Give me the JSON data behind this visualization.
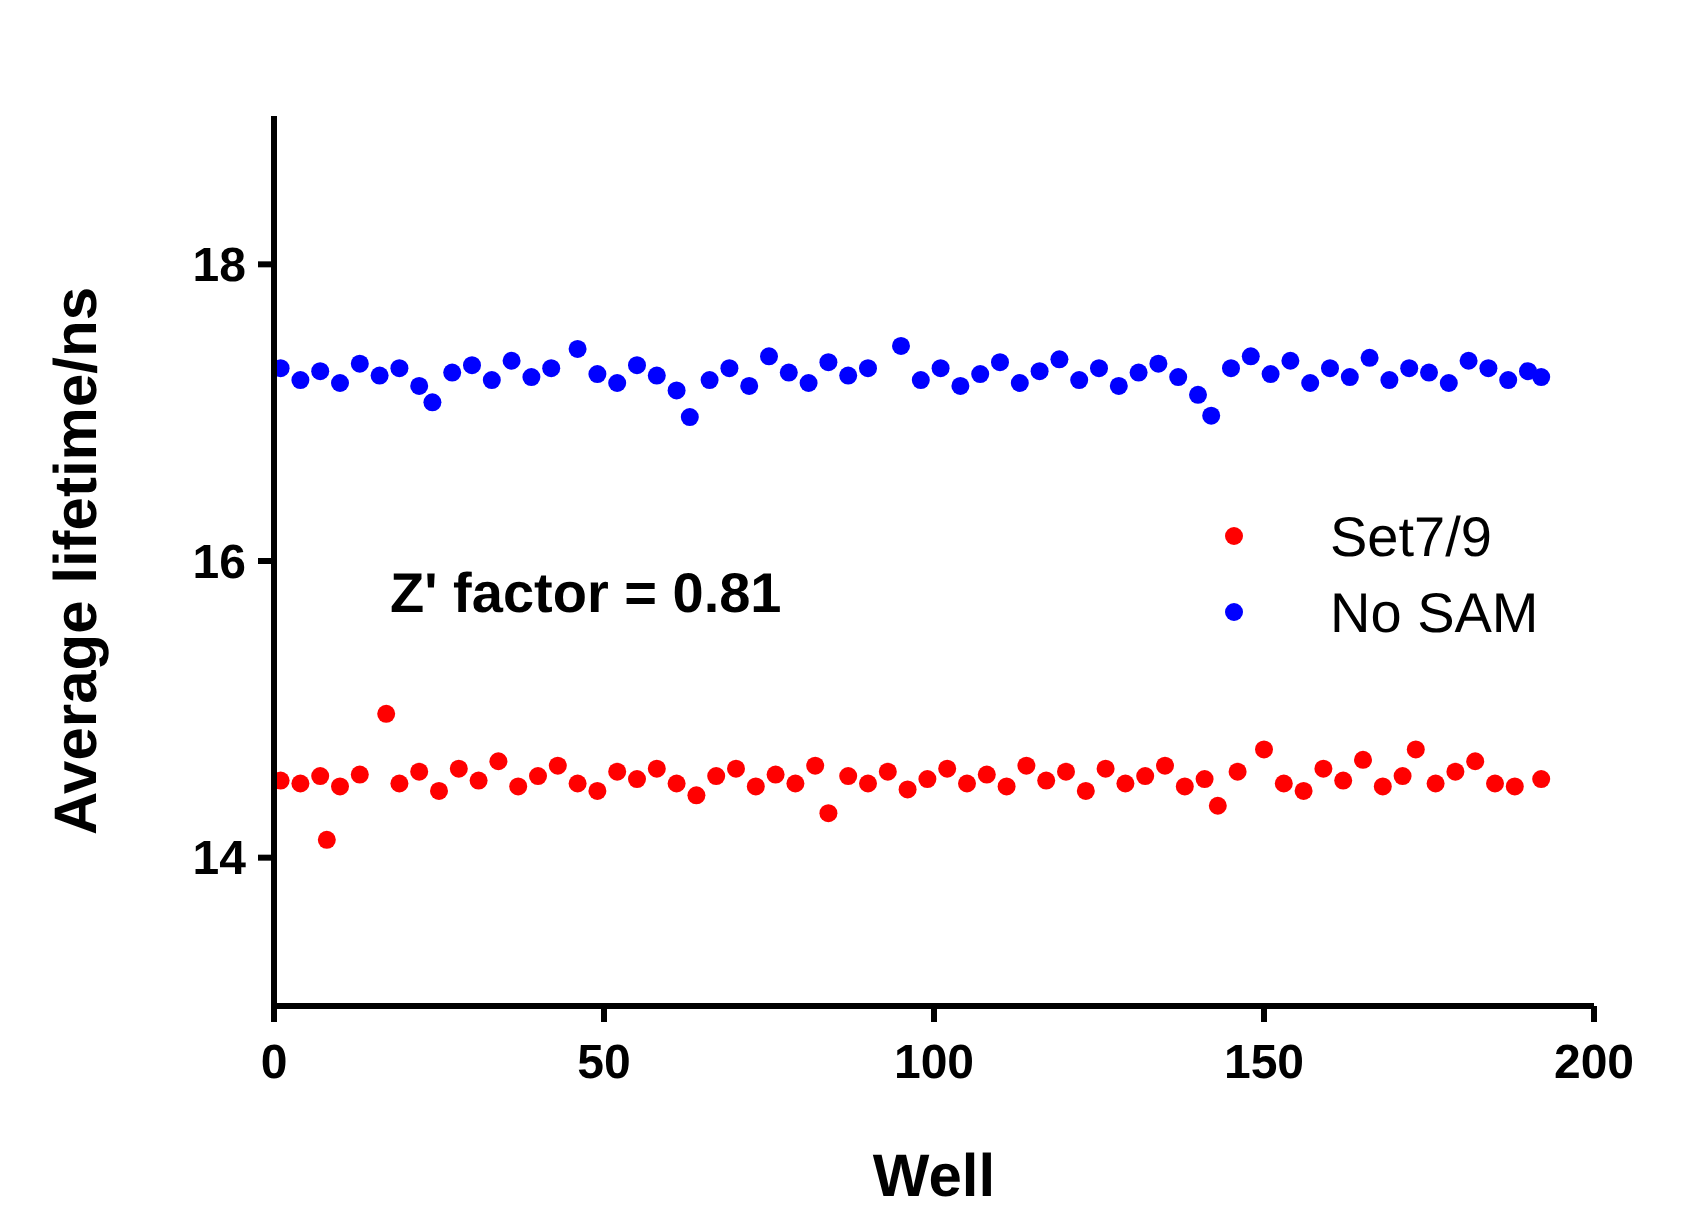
{
  "chart_data": {
    "type": "scatter",
    "xlabel": "Well",
    "ylabel": "Average lifetime/ns",
    "xlim": [
      0,
      200
    ],
    "xticks": [
      0,
      50,
      100,
      150,
      200
    ],
    "ylim": [
      13,
      19
    ],
    "yticks": [
      14,
      16,
      18
    ],
    "grid": false,
    "legend": "right",
    "marker": "circle",
    "annotations": [
      "Z' factor = 0.81"
    ],
    "series": [
      {
        "name": "Set7/9",
        "color": "#ff0000",
        "x": [
          1,
          4,
          7,
          8,
          10,
          13,
          17,
          19,
          22,
          25,
          28,
          31,
          34,
          37,
          40,
          43,
          46,
          49,
          52,
          55,
          58,
          61,
          64,
          67,
          70,
          73,
          76,
          79,
          82,
          84,
          87,
          90,
          93,
          96,
          99,
          102,
          105,
          108,
          111,
          114,
          117,
          120,
          123,
          126,
          129,
          132,
          135,
          138,
          141,
          143,
          146,
          150,
          153,
          156,
          159,
          162,
          165,
          168,
          171,
          173,
          176,
          179,
          182,
          185,
          188,
          192
        ],
        "values": [
          14.52,
          14.5,
          14.55,
          14.12,
          14.48,
          14.56,
          14.97,
          14.5,
          14.58,
          14.45,
          14.6,
          14.52,
          14.65,
          14.48,
          14.55,
          14.62,
          14.5,
          14.45,
          14.58,
          14.53,
          14.6,
          14.5,
          14.42,
          14.55,
          14.6,
          14.48,
          14.56,
          14.5,
          14.62,
          14.3,
          14.55,
          14.5,
          14.58,
          14.46,
          14.53,
          14.6,
          14.5,
          14.56,
          14.48,
          14.62,
          14.52,
          14.58,
          14.45,
          14.6,
          14.5,
          14.55,
          14.62,
          14.48,
          14.53,
          14.35,
          14.58,
          14.73,
          14.5,
          14.45,
          14.6,
          14.52,
          14.66,
          14.48,
          14.55,
          14.73,
          14.5,
          14.58,
          14.65,
          14.5,
          14.48,
          14.53
        ]
      },
      {
        "name": "No SAM",
        "color": "#0000ff",
        "x": [
          1,
          4,
          7,
          10,
          13,
          16,
          19,
          22,
          24,
          27,
          30,
          33,
          36,
          39,
          42,
          46,
          49,
          52,
          55,
          58,
          61,
          63,
          66,
          69,
          72,
          75,
          78,
          81,
          84,
          87,
          90,
          95,
          98,
          101,
          104,
          107,
          110,
          113,
          116,
          119,
          122,
          125,
          128,
          131,
          134,
          137,
          140,
          142,
          145,
          148,
          151,
          154,
          157,
          160,
          163,
          166,
          169,
          172,
          175,
          178,
          181,
          184,
          187,
          190,
          192
        ],
        "values": [
          17.3,
          17.22,
          17.28,
          17.2,
          17.33,
          17.25,
          17.3,
          17.18,
          17.07,
          17.27,
          17.32,
          17.22,
          17.35,
          17.24,
          17.3,
          17.43,
          17.26,
          17.2,
          17.32,
          17.25,
          17.15,
          16.97,
          17.22,
          17.3,
          17.18,
          17.38,
          17.27,
          17.2,
          17.34,
          17.25,
          17.3,
          17.45,
          17.22,
          17.3,
          17.18,
          17.26,
          17.34,
          17.2,
          17.28,
          17.36,
          17.22,
          17.3,
          17.18,
          17.27,
          17.33,
          17.24,
          17.12,
          16.98,
          17.3,
          17.38,
          17.26,
          17.35,
          17.2,
          17.3,
          17.24,
          17.37,
          17.22,
          17.3,
          17.27,
          17.2,
          17.35,
          17.3,
          17.22,
          17.28,
          17.24
        ]
      }
    ]
  }
}
